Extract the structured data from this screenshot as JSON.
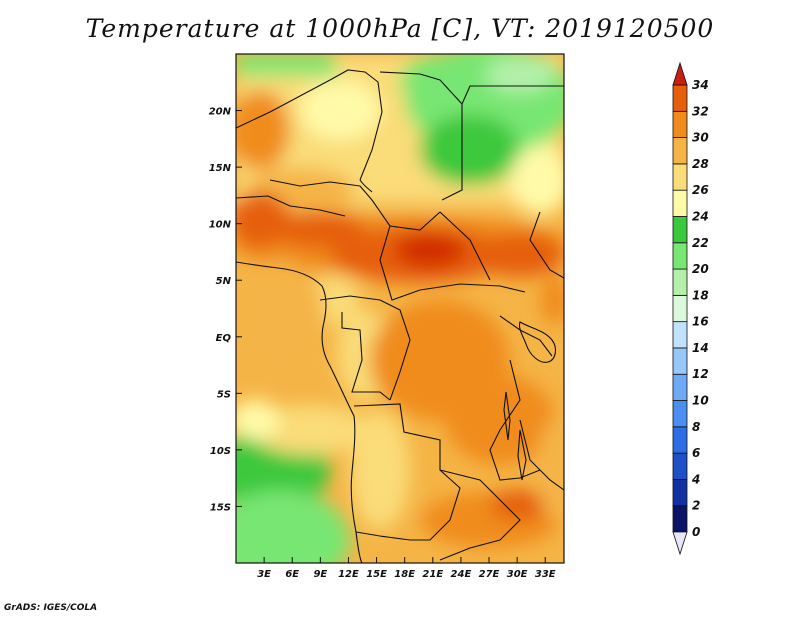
{
  "title": "Temperature at 1000hPa [C], VT: 2019120500",
  "credit": "GrADS: IGES/COLA",
  "map": {
    "lon_range": [
      0,
      35
    ],
    "lat_range": [
      -20,
      25
    ],
    "lon_ticks": [
      {
        "value": 3,
        "label": "3E"
      },
      {
        "value": 6,
        "label": "6E"
      },
      {
        "value": 9,
        "label": "9E"
      },
      {
        "value": 12,
        "label": "12E"
      },
      {
        "value": 15,
        "label": "15E"
      },
      {
        "value": 18,
        "label": "18E"
      },
      {
        "value": 21,
        "label": "21E"
      },
      {
        "value": 24,
        "label": "24E"
      },
      {
        "value": 27,
        "label": "27E"
      },
      {
        "value": 30,
        "label": "30E"
      },
      {
        "value": 33,
        "label": "33E"
      }
    ],
    "lat_ticks": [
      {
        "value": 20,
        "label": "20N"
      },
      {
        "value": 15,
        "label": "15N"
      },
      {
        "value": 10,
        "label": "10N"
      },
      {
        "value": 5,
        "label": "5N"
      },
      {
        "value": 0,
        "label": "EQ"
      },
      {
        "value": -5,
        "label": "5S"
      },
      {
        "value": -10,
        "label": "10S"
      },
      {
        "value": -15,
        "label": "15S"
      }
    ]
  },
  "colorbar": {
    "levels": [
      0,
      2,
      4,
      6,
      8,
      10,
      12,
      14,
      16,
      18,
      20,
      22,
      24,
      26,
      28,
      30,
      32,
      34
    ],
    "colors": [
      "#0a1464",
      "#0f32a0",
      "#1e50c8",
      "#2d6ee6",
      "#4a8ef0",
      "#6eaaf5",
      "#96c8fa",
      "#c2e2fc",
      "#dcf8dc",
      "#b4f0aa",
      "#78e672",
      "#3cc83c",
      "#fffaa8",
      "#fadc78",
      "#f5b446",
      "#f08c1e",
      "#e65f0a",
      "#d22d00",
      "#b41400"
    ],
    "under_color": "#e8e6f8",
    "over_color": "#c81e14"
  }
}
